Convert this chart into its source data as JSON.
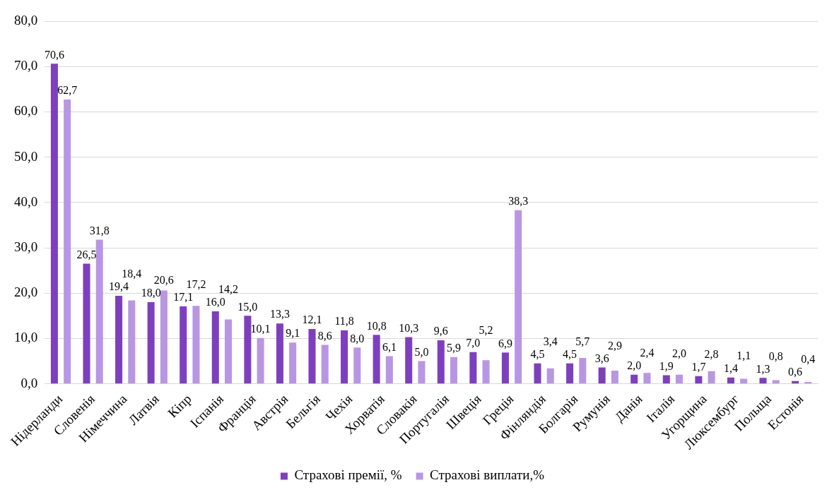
{
  "chart_data": {
    "type": "bar",
    "categories": [
      "Нідерланди",
      "Словенія",
      "Німеччина",
      "Латвія",
      "Кіпр",
      "Іспанія",
      "Франція",
      "Австрія",
      "Бельгія",
      "Чехія",
      "Хорватія",
      "Словакія",
      "Португалія",
      "Швеція",
      "Греція",
      "Фінляндія",
      "Болгарія",
      "Румунія",
      "Данія",
      "Італія",
      "Угорщина",
      "Люксембург",
      "Польща",
      "Естонія"
    ],
    "series": [
      {
        "name": "Страхові премії, %",
        "color": "#7e3fbf",
        "values": [
          70.6,
          26.5,
          19.4,
          18.0,
          17.1,
          16.0,
          15.0,
          13.3,
          12.1,
          11.8,
          10.8,
          10.3,
          9.6,
          7.0,
          6.9,
          4.5,
          4.5,
          3.6,
          2.0,
          1.9,
          1.7,
          1.4,
          1.3,
          0.6
        ],
        "value_labels": [
          "70,6",
          "26,5",
          "19,4",
          "18,0",
          "17,1",
          "16,0",
          "15,0",
          "13,3",
          "12,1",
          "11,8",
          "10,8",
          "10,3",
          "9,6",
          "7,0",
          "6,9",
          "4,5",
          "4,5",
          "3,6",
          "2,0",
          "1,9",
          "1,7",
          "1,4",
          "1,3",
          "0,6"
        ]
      },
      {
        "name": "Страхові виплати,%",
        "color": "#b996e3",
        "values": [
          62.7,
          31.8,
          18.4,
          20.6,
          17.2,
          14.2,
          10.1,
          9.1,
          8.6,
          8.0,
          6.1,
          5.0,
          5.9,
          5.2,
          38.3,
          3.4,
          5.7,
          2.9,
          2.4,
          2.0,
          2.8,
          1.1,
          0.8,
          0.4
        ],
        "value_labels": [
          "62,7",
          "31,8",
          "18,4",
          "20,6",
          "17,2",
          "14,2",
          "10,1",
          "9,1",
          "8,6",
          "8,0",
          "6,1",
          "5,0",
          "5,9",
          "5,2",
          "38,3",
          "3,4",
          "5,7",
          "2,9",
          "2,4",
          "2,0",
          "2,8",
          "1,1",
          "0,8",
          "0,4"
        ]
      }
    ],
    "ylim": [
      0,
      80
    ],
    "yticks": [
      {
        "value": 0,
        "label": "0,0"
      },
      {
        "value": 10,
        "label": "10,0"
      },
      {
        "value": 20,
        "label": "20,0"
      },
      {
        "value": 30,
        "label": "30,0"
      },
      {
        "value": 40,
        "label": "40,0"
      },
      {
        "value": 50,
        "label": "50,0"
      },
      {
        "value": 60,
        "label": "60,0"
      },
      {
        "value": 70,
        "label": "70,0"
      },
      {
        "value": 80,
        "label": "80,0"
      }
    ],
    "grid": "y",
    "legend": "bottom"
  }
}
